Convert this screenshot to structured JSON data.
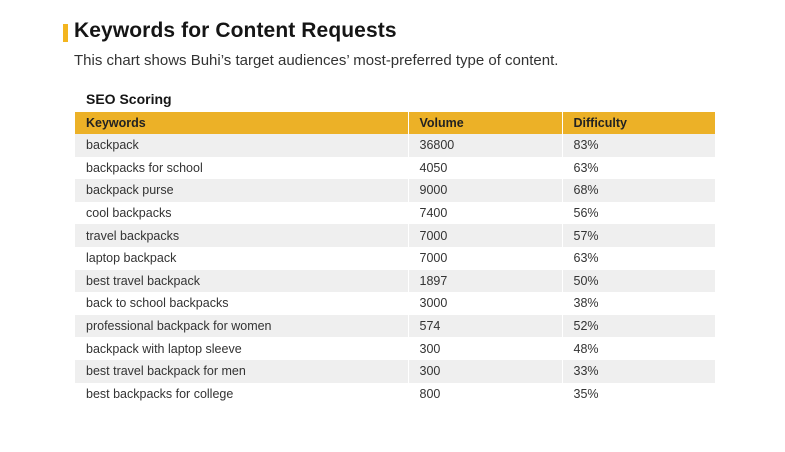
{
  "header": {
    "title": "Keywords for Content Requests",
    "subtitle": "This chart shows Buhi’s target audiences’ most-preferred type of content.",
    "accent_color": "#f3b51f"
  },
  "table": {
    "title": "SEO Scoring",
    "header_color": "#ecb127",
    "columns": [
      "Keywords",
      "Volume",
      "Difficulty"
    ],
    "rows": [
      [
        "backpack",
        "36800",
        "83%"
      ],
      [
        "backpacks for school",
        "4050",
        "63%"
      ],
      [
        "backpack purse",
        "9000",
        "68%"
      ],
      [
        "cool backpacks",
        "7400",
        "56%"
      ],
      [
        "travel backpacks",
        "7000",
        "57%"
      ],
      [
        "laptop backpack",
        "7000",
        "63%"
      ],
      [
        "best travel backpack",
        "1897",
        "50%"
      ],
      [
        "back to school backpacks",
        "3000",
        "38%"
      ],
      [
        "professional backpack for women",
        "574",
        "52%"
      ],
      [
        "backpack with laptop sleeve",
        "300",
        "48%"
      ],
      [
        "best travel backpack for men",
        "300",
        "33%"
      ],
      [
        "best backpacks for college",
        "800",
        "35%"
      ]
    ]
  }
}
